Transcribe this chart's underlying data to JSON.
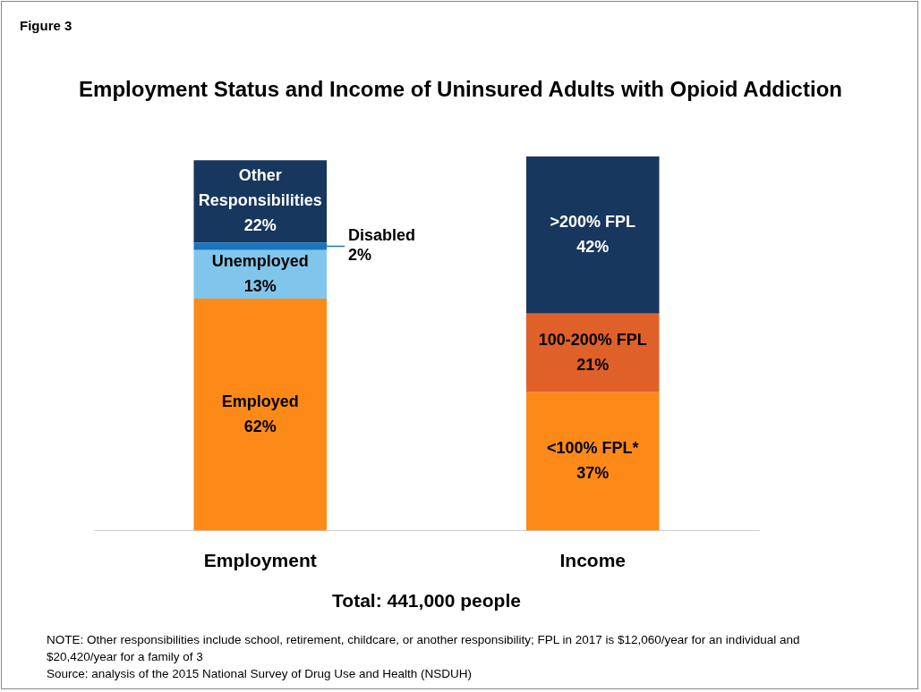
{
  "chart_data": {
    "type": "bar",
    "stacked": true,
    "title": "Employment Status and Income of Uninsured Adults with Opioid Addiction",
    "xlabel": "Total: 441,000 people",
    "categories": [
      "Employment",
      "Income"
    ],
    "series": [
      {
        "name": "Employed",
        "color": "#fd8a18",
        "values": [
          62,
          null
        ],
        "value_labels": [
          "62%",
          null
        ]
      },
      {
        "name": "Unemployed",
        "color": "#80c6ec",
        "values": [
          13,
          null
        ],
        "value_labels": [
          "13%",
          null
        ]
      },
      {
        "name": "Disabled",
        "color": "#1c75bc",
        "values": [
          2,
          null
        ],
        "value_labels": [
          "2%",
          null
        ]
      },
      {
        "name": "Other Responsibilities",
        "color": "#17375e",
        "values": [
          22,
          null
        ],
        "value_labels": [
          "22%",
          null
        ]
      },
      {
        "name": "<100% FPL*",
        "color": "#fd8a18",
        "values": [
          null,
          37
        ],
        "value_labels": [
          null,
          "37%"
        ]
      },
      {
        "name": "100-200% FPL",
        "color": "#e0602a",
        "values": [
          null,
          21
        ],
        "value_labels": [
          null,
          "21%"
        ]
      },
      {
        "name": ">200% FPL",
        "color": "#17375e",
        "values": [
          null,
          42
        ],
        "value_labels": [
          null,
          "42%"
        ]
      }
    ],
    "legend": false,
    "tick_labels": "x",
    "annotations": [
      "Figure 3",
      "NOTE: Other responsibilities include school, retirement, childcare, or another responsibility; FPL in 2017 is $12,060/year for an individual and $20,420/year for a family of 3",
      "Source: analysis of the 2015 National Survey of Drug Use and Health (NSDUH)"
    ]
  }
}
